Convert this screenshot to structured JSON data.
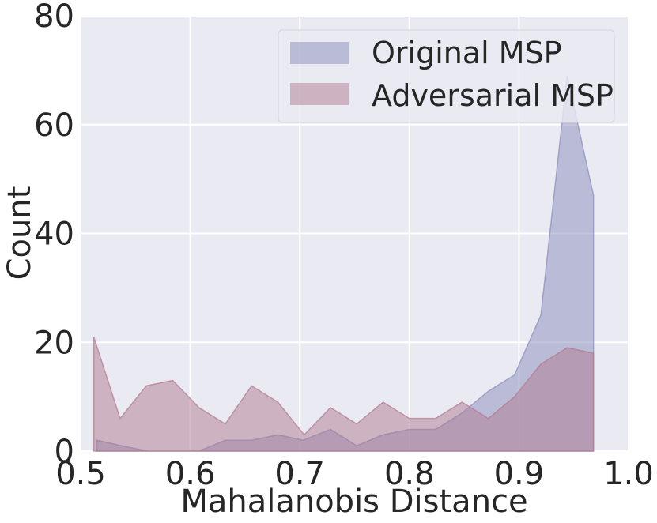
{
  "chart_data": {
    "type": "area",
    "title": "",
    "xlabel": "Mahalanobis Distance",
    "ylabel": "Count",
    "xlim": [
      0.5,
      1.0
    ],
    "ylim": [
      0,
      80
    ],
    "xticks": [
      0.5,
      0.6,
      0.7,
      0.8,
      0.9,
      1.0
    ],
    "xtick_labels": [
      "0.5",
      "0.6",
      "0.7",
      "0.8",
      "0.9",
      "1.0"
    ],
    "yticks": [
      0,
      20,
      40,
      60,
      80
    ],
    "ytick_labels": [
      "0",
      "20",
      "40",
      "60",
      "80"
    ],
    "grid": true,
    "legend_position": "top-right",
    "series": [
      {
        "name": "Original MSP",
        "color": "#8a8dbb",
        "points": [
          [
            0.515,
            2
          ],
          [
            0.537,
            1
          ],
          [
            0.561,
            0
          ],
          [
            0.584,
            0
          ],
          [
            0.608,
            0
          ],
          [
            0.632,
            2
          ],
          [
            0.656,
            2
          ],
          [
            0.68,
            3
          ],
          [
            0.703,
            2
          ],
          [
            0.728,
            4
          ],
          [
            0.752,
            1
          ],
          [
            0.776,
            3
          ],
          [
            0.8,
            4
          ],
          [
            0.824,
            4
          ],
          [
            0.848,
            7
          ],
          [
            0.872,
            11
          ],
          [
            0.896,
            14
          ],
          [
            0.92,
            25
          ],
          [
            0.944,
            69
          ],
          [
            0.968,
            47
          ]
        ]
      },
      {
        "name": "Adversarial MSP",
        "color": "#b07a8f",
        "points": [
          [
            0.512,
            21
          ],
          [
            0.536,
            6
          ],
          [
            0.56,
            12
          ],
          [
            0.584,
            13
          ],
          [
            0.608,
            8
          ],
          [
            0.632,
            5
          ],
          [
            0.656,
            12
          ],
          [
            0.68,
            9
          ],
          [
            0.704,
            3
          ],
          [
            0.728,
            8
          ],
          [
            0.752,
            5
          ],
          [
            0.776,
            9
          ],
          [
            0.8,
            6
          ],
          [
            0.824,
            6
          ],
          [
            0.848,
            9
          ],
          [
            0.872,
            6
          ],
          [
            0.896,
            10
          ],
          [
            0.92,
            16
          ],
          [
            0.944,
            19
          ],
          [
            0.968,
            18
          ]
        ]
      }
    ]
  }
}
